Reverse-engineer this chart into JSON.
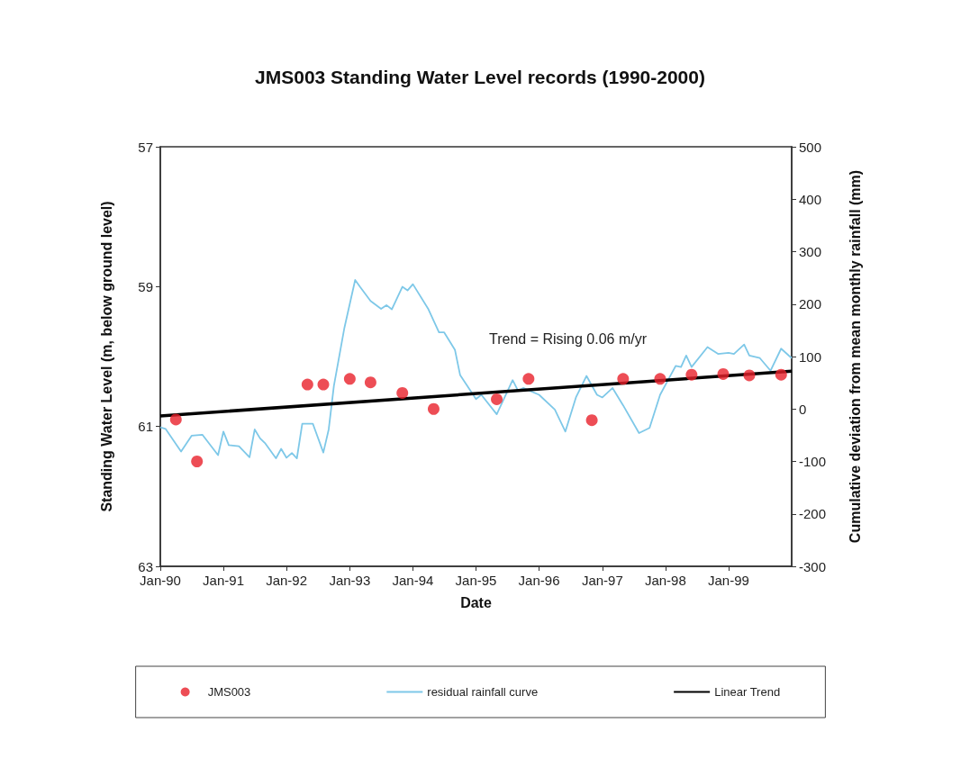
{
  "chart_data": {
    "type": "scatter",
    "title": "JMS003 Standing Water Level records (1990-2000)",
    "xlabel": "Date",
    "ylabel": "Standing Water Level (m, below ground level)",
    "y2label": "Cumulative deviation from mean monthly rainfall (mm)",
    "annotations": [
      "Trend = Rising 0.06 m/yr"
    ],
    "xlim": [
      "1990-01",
      "2000-01"
    ],
    "xticks": [
      {
        "value": "1990-01",
        "label": "Jan-90"
      },
      {
        "value": "1991-01",
        "label": "Jan-91"
      },
      {
        "value": "1992-01",
        "label": "Jan-92"
      },
      {
        "value": "1993-01",
        "label": "Jan-93"
      },
      {
        "value": "1994-01",
        "label": "Jan-94"
      },
      {
        "value": "1995-01",
        "label": "Jan-95"
      },
      {
        "value": "1996-01",
        "label": "Jan-96"
      },
      {
        "value": "1997-01",
        "label": "Jan-97"
      },
      {
        "value": "1998-01",
        "label": "Jan-98"
      },
      {
        "value": "1999-01",
        "label": "Jan-99"
      }
    ],
    "ylim": [
      63,
      57
    ],
    "yticks": [
      57,
      59,
      61,
      63
    ],
    "y2lim": [
      -300,
      500
    ],
    "y2ticks": [
      -300,
      -200,
      -100,
      0,
      100,
      200,
      300,
      400,
      500
    ],
    "grid": false,
    "legend": "bottom",
    "series": [
      {
        "name": "JMS003",
        "marker": "circle",
        "color": "#e8202a",
        "x": [
          "1990-04",
          "1990-08",
          "1992-05",
          "1992-08",
          "1993-01",
          "1993-05",
          "1993-11",
          "1994-05",
          "1995-05",
          "1995-11",
          "1996-11",
          "1997-05",
          "1997-12",
          "1998-06",
          "1998-12",
          "1999-05",
          "1999-11"
        ],
        "values": [
          60.9,
          61.5,
          60.4,
          60.4,
          60.32,
          60.37,
          60.52,
          60.75,
          60.61,
          60.32,
          60.91,
          60.32,
          60.32,
          60.26,
          60.25,
          60.27,
          60.26
        ]
      },
      {
        "name": "residual rainfall curve",
        "type": "line",
        "axis": "y2",
        "color": "#7ec8e8",
        "line_style": "solid",
        "marker": "none",
        "x": [
          "1990-01",
          "1990-02",
          "1990-05",
          "1990-07",
          "1990-09",
          "1990-12",
          "1991-01",
          "1991-02",
          "1991-04",
          "1991-06",
          "1991-07",
          "1991-08",
          "1991-09",
          "1991-11",
          "1991-12",
          "1992-01",
          "1992-02",
          "1992-03",
          "1992-04",
          "1992-06",
          "1992-08",
          "1992-09",
          "1992-10",
          "1992-12",
          "1993-02",
          "1993-03",
          "1993-05",
          "1993-07",
          "1993-08",
          "1993-09",
          "1993-11",
          "1993-12",
          "1994-01",
          "1994-04",
          "1994-06",
          "1994-07",
          "1994-09",
          "1994-10",
          "1995-01",
          "1995-02",
          "1995-05",
          "1995-08",
          "1995-09",
          "1995-10",
          "1996-01",
          "1996-04",
          "1996-06",
          "1996-08",
          "1996-10",
          "1996-12",
          "1997-01",
          "1997-03",
          "1997-05",
          "1997-08",
          "1997-10",
          "1997-12",
          "1998-02",
          "1998-03",
          "1998-04",
          "1998-05",
          "1998-06",
          "1998-09",
          "1998-11",
          "1999-01",
          "1999-02",
          "1999-04",
          "1999-05",
          "1999-07",
          "1999-09",
          "1999-11",
          "2000-01"
        ],
        "values": [
          -35,
          -38,
          -81,
          -51,
          -49,
          -88,
          -43,
          -69,
          -71,
          -92,
          -39,
          -56,
          -66,
          -94,
          -76,
          -93,
          -84,
          -94,
          -28,
          -28,
          -83,
          -39,
          44,
          155,
          246,
          233,
          206,
          191,
          198,
          190,
          233,
          226,
          238,
          190,
          146,
          146,
          113,
          65,
          19,
          27,
          -10,
          55,
          35,
          40,
          27,
          -1,
          -43,
          22,
          63,
          27,
          22,
          40,
          7,
          -46,
          -36,
          27,
          65,
          82,
          80,
          102,
          80,
          118,
          105,
          107,
          105,
          123,
          102,
          97,
          73,
          115,
          97
        ]
      },
      {
        "name": "Linear Trend",
        "type": "line",
        "color": "#000000",
        "line_style": "solid",
        "marker": "none",
        "x": [
          "1990-01",
          "2000-01"
        ],
        "values": [
          60.85,
          60.21
        ]
      }
    ]
  }
}
